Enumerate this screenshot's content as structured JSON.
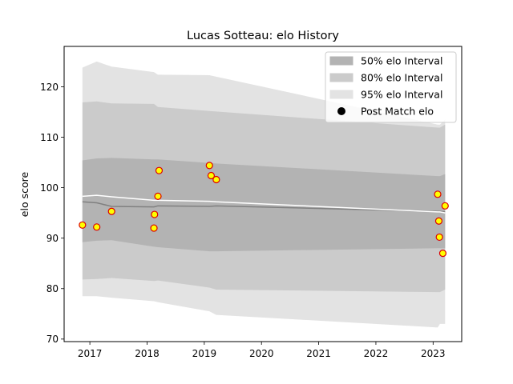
{
  "chart_data": {
    "type": "area",
    "title": "Lucas Sotteau: elo History",
    "xlabel": "",
    "ylabel": "elo score",
    "xlim": [
      2016.55,
      2023.5
    ],
    "ylim": [
      69.5,
      128
    ],
    "x_ticks": [
      2017,
      2018,
      2019,
      2020,
      2021,
      2022,
      2023
    ],
    "y_ticks": [
      70,
      80,
      90,
      100,
      110,
      120
    ],
    "grid": false,
    "legend_position": "upper right",
    "x": [
      2016.87,
      2017.12,
      2017.38,
      2018.12,
      2018.19,
      2019.09,
      2019.21,
      2023.08,
      2023.12,
      2023.21
    ],
    "band_95": {
      "name": "95% elo Interval",
      "upper": [
        123.8,
        125.0,
        124.0,
        122.9,
        122.4,
        122.3,
        122.0,
        112.5,
        112.5,
        113.5
      ],
      "lower": [
        78.5,
        78.5,
        78.2,
        77.5,
        77.3,
        75.5,
        74.8,
        72.3,
        73.0,
        73.0
      ]
    },
    "band_80": {
      "name": "80% elo Interval",
      "upper": [
        116.9,
        117.1,
        116.7,
        116.6,
        116.0,
        115.2,
        115.1,
        111.9,
        111.9,
        112.5
      ],
      "lower": [
        81.8,
        81.9,
        82.1,
        81.5,
        81.6,
        80.2,
        79.8,
        79.3,
        79.3,
        79.8
      ]
    },
    "band_50": {
      "name": "50% elo Interval",
      "upper": [
        105.4,
        105.8,
        105.9,
        105.6,
        105.6,
        104.9,
        104.8,
        102.3,
        102.3,
        102.7
      ],
      "lower": [
        89.2,
        89.5,
        89.6,
        88.3,
        88.2,
        87.4,
        87.4,
        88.0,
        88.0,
        88.0
      ]
    },
    "mean_line": {
      "name": "mean",
      "values": [
        98.3,
        98.5,
        98.2,
        97.5,
        97.5,
        97.3,
        97.2,
        95.2,
        95.2,
        95.0
      ]
    },
    "median_line": {
      "name": "median",
      "values": [
        97.2,
        97.0,
        96.3,
        96.2,
        96.4,
        96.3,
        96.4,
        95.3,
        95.3,
        95.2
      ]
    },
    "points": {
      "name": "Post Match elo",
      "x": [
        2016.87,
        2017.12,
        2017.38,
        2018.12,
        2018.13,
        2018.19,
        2018.21,
        2019.09,
        2019.12,
        2019.21,
        2023.08,
        2023.1,
        2023.11,
        2023.17,
        2023.21
      ],
      "y": [
        92.6,
        92.2,
        95.3,
        92.0,
        94.7,
        98.3,
        103.4,
        104.4,
        102.4,
        101.6,
        98.7,
        93.4,
        90.2,
        87.0,
        96.4
      ]
    },
    "colors": {
      "band_95": "#e3e3e3",
      "band_80": "#cbcbcb",
      "band_50": "#b3b3b3",
      "mean_line": "#ffffff",
      "median_line": "#808080",
      "point_fill": "#ffff00",
      "point_edge": "#dd0000",
      "legend_marker": "#000000"
    }
  }
}
